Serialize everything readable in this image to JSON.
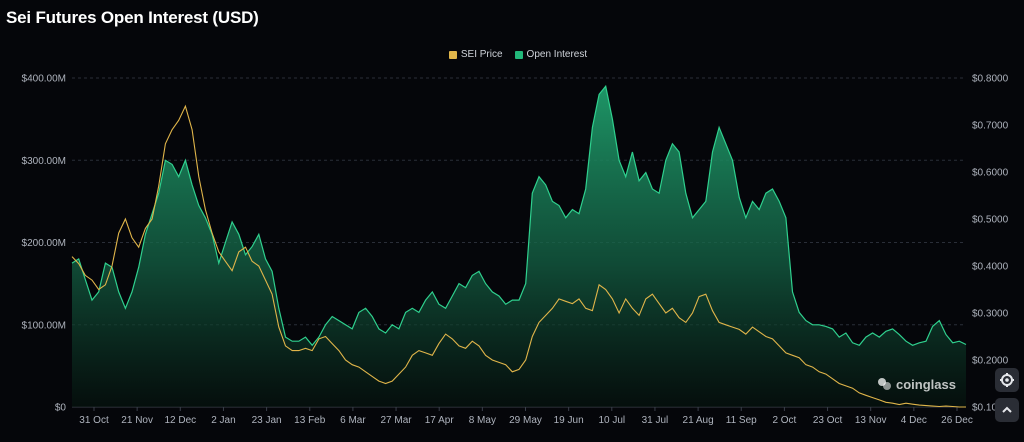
{
  "title": "Sei Futures Open Interest (USD)",
  "watermark": "coinglass",
  "legend": [
    {
      "label": "SEI Price",
      "color": "#e0b54a"
    },
    {
      "label": "Open Interest",
      "color": "#22b77a"
    }
  ],
  "buttons": {
    "settings_icon": "gear-icon",
    "scroll_top_icon": "chevron-up-icon"
  },
  "chart_data": {
    "type": "area",
    "title": "Sei Futures Open Interest (USD)",
    "x_tick_labels": [
      "31 Oct",
      "21 Nov",
      "12 Dec",
      "2 Jan",
      "23 Jan",
      "13 Feb",
      "6 Mar",
      "27 Mar",
      "17 Apr",
      "8 May",
      "29 May",
      "19 Jun",
      "10 Jul",
      "31 Jul",
      "21 Aug",
      "11 Sep",
      "2 Oct",
      "23 Oct",
      "13 Nov",
      "4 Dec",
      "26 Dec"
    ],
    "left_axis": {
      "ticks": [
        "$0",
        "$100.00M",
        "$200.00M",
        "$300.00M",
        "$400.00M"
      ],
      "ylim": [
        0,
        400
      ]
    },
    "right_axis": {
      "ticks": [
        "$0.1000",
        "$0.2000",
        "$0.3000",
        "$0.4000",
        "$0.5000",
        "$0.6000",
        "$0.7000",
        "$0.8000"
      ],
      "ylim": [
        0.1,
        0.8
      ]
    },
    "grid": "horizontal",
    "legend_position": "top-center",
    "series": [
      {
        "name": "Open Interest",
        "axis": "left",
        "color": "#22b77a",
        "values": [
          175,
          180,
          155,
          130,
          140,
          175,
          170,
          140,
          120,
          140,
          170,
          210,
          235,
          260,
          300,
          295,
          280,
          300,
          270,
          245,
          230,
          210,
          175,
          200,
          225,
          210,
          185,
          195,
          210,
          180,
          165,
          120,
          85,
          80,
          80,
          85,
          75,
          85,
          100,
          110,
          105,
          100,
          95,
          115,
          120,
          110,
          95,
          90,
          100,
          95,
          115,
          120,
          115,
          130,
          140,
          125,
          120,
          135,
          150,
          145,
          160,
          165,
          150,
          140,
          135,
          125,
          130,
          130,
          150,
          260,
          280,
          270,
          250,
          245,
          230,
          240,
          235,
          265,
          340,
          380,
          390,
          350,
          300,
          280,
          310,
          275,
          285,
          265,
          260,
          300,
          320,
          310,
          260,
          230,
          240,
          250,
          310,
          340,
          320,
          300,
          255,
          230,
          250,
          240,
          260,
          265,
          250,
          230,
          140,
          115,
          105,
          100,
          100,
          98,
          95,
          85,
          90,
          78,
          75,
          85,
          90,
          85,
          92,
          95,
          88,
          80,
          75,
          78,
          80,
          98,
          105,
          88,
          78,
          80,
          76
        ]
      },
      {
        "name": "SEI Price",
        "axis": "right",
        "color": "#e0b54a",
        "values": [
          0.42,
          0.405,
          0.38,
          0.37,
          0.35,
          0.36,
          0.4,
          0.47,
          0.5,
          0.46,
          0.44,
          0.48,
          0.5,
          0.57,
          0.66,
          0.69,
          0.71,
          0.74,
          0.69,
          0.59,
          0.52,
          0.47,
          0.43,
          0.41,
          0.39,
          0.43,
          0.44,
          0.41,
          0.4,
          0.37,
          0.34,
          0.27,
          0.23,
          0.22,
          0.22,
          0.225,
          0.22,
          0.245,
          0.25,
          0.235,
          0.22,
          0.2,
          0.19,
          0.185,
          0.175,
          0.165,
          0.155,
          0.15,
          0.155,
          0.17,
          0.185,
          0.21,
          0.22,
          0.215,
          0.21,
          0.235,
          0.255,
          0.245,
          0.23,
          0.225,
          0.24,
          0.23,
          0.21,
          0.2,
          0.195,
          0.19,
          0.175,
          0.18,
          0.2,
          0.25,
          0.28,
          0.295,
          0.31,
          0.33,
          0.325,
          0.32,
          0.33,
          0.31,
          0.305,
          0.36,
          0.35,
          0.33,
          0.3,
          0.33,
          0.31,
          0.295,
          0.33,
          0.34,
          0.32,
          0.3,
          0.31,
          0.29,
          0.28,
          0.3,
          0.335,
          0.34,
          0.305,
          0.28,
          0.275,
          0.27,
          0.265,
          0.255,
          0.27,
          0.26,
          0.25,
          0.245,
          0.23,
          0.215,
          0.21,
          0.205,
          0.19,
          0.185,
          0.175,
          0.17,
          0.16,
          0.15,
          0.145,
          0.14,
          0.13,
          0.125,
          0.12,
          0.115,
          0.11,
          0.108,
          0.105,
          0.108,
          0.106,
          0.104,
          0.103,
          0.102,
          0.101,
          0.102,
          0.101,
          0.1,
          0.1
        ]
      }
    ]
  }
}
